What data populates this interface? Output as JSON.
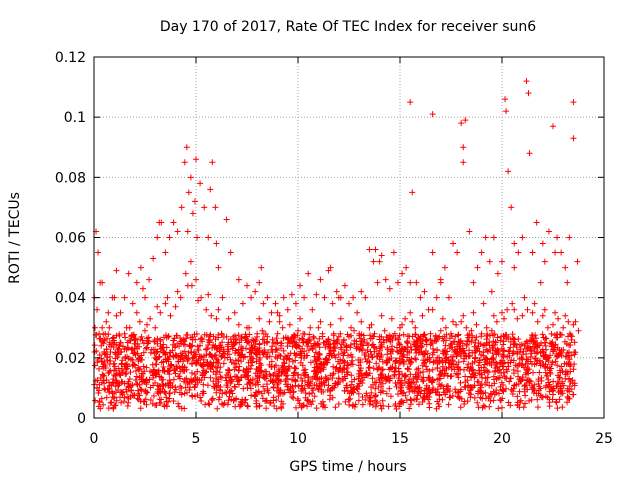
{
  "chart_data": {
    "type": "scatter",
    "title": "Day 170 of 2017, Rate Of TEC Index for receiver sun6",
    "xlabel": "GPS time / hours",
    "ylabel": "ROTI / TECUs",
    "xlim": [
      0,
      25
    ],
    "ylim": [
      0,
      0.12
    ],
    "x_ticks": [
      0,
      5,
      10,
      15,
      20,
      25
    ],
    "x_tick_labels": [
      "0",
      "5",
      "10",
      "15",
      "20",
      "25"
    ],
    "y_ticks": [
      0,
      0.02,
      0.04,
      0.06,
      0.08,
      0.1,
      0.12
    ],
    "y_tick_labels": [
      "0",
      "0.02",
      "0.04",
      "0.06",
      "0.08",
      "0.1",
      "0.12"
    ],
    "grid": true,
    "marker": "+",
    "color": "#ff0000",
    "series": [
      {
        "x": [
          0.02,
          0.1,
          0.2,
          0.3,
          0.4,
          0.55,
          0.7,
          0.9,
          1.1,
          1.3,
          1.5,
          1.7,
          1.9,
          2.1,
          2.3,
          2.5,
          2.7,
          2.9,
          3.1,
          3.3,
          3.5,
          3.7,
          3.9,
          4.1,
          4.3,
          4.45,
          4.55,
          4.65,
          4.75,
          4.85,
          4.95,
          5.05,
          5.2,
          5.4,
          5.6,
          5.8,
          5.95,
          6.1,
          6.3,
          6.5,
          6.7,
          6.9,
          7.1,
          7.3,
          7.5,
          7.7,
          7.9,
          8.1,
          8.3,
          8.5,
          8.7,
          8.9,
          9.1,
          9.3,
          9.5,
          9.7,
          9.9,
          10.1,
          10.3,
          10.5,
          10.7,
          10.9,
          11.1,
          11.3,
          11.5,
          11.7,
          11.9,
          12.1,
          12.3,
          12.5,
          12.7,
          12.9,
          13.1,
          13.3,
          13.5,
          13.7,
          13.9,
          14.1,
          14.3,
          14.5,
          14.7,
          14.9,
          15.1,
          15.3,
          15.5,
          15.6,
          15.8,
          16.0,
          16.2,
          16.4,
          16.6,
          16.8,
          17.0,
          17.2,
          17.4,
          17.6,
          17.8,
          18.0,
          18.1,
          18.2,
          18.4,
          18.6,
          18.8,
          19.0,
          19.2,
          19.4,
          19.6,
          19.8,
          20.0,
          20.15,
          20.3,
          20.45,
          20.6,
          20.8,
          21.0,
          21.2,
          21.35,
          21.5,
          21.7,
          21.9,
          22.1,
          22.3,
          22.5,
          22.7,
          22.9,
          23.1,
          23.3,
          23.5,
          23.7,
          1.0,
          3.2,
          4.6,
          5.0,
          5.7,
          8.2,
          11.6,
          13.8,
          15.5,
          16.6,
          18.1,
          20.2,
          21.3,
          22.6,
          23.5,
          0.4,
          2.4,
          4.8,
          6.0,
          9.0,
          12.0,
          14.0,
          17.0,
          19.5,
          20.6,
          22.0,
          23.2
        ],
        "y": [
          0.04,
          0.062,
          0.055,
          0.045,
          0.03,
          0.028,
          0.035,
          0.04,
          0.049,
          0.035,
          0.04,
          0.048,
          0.038,
          0.045,
          0.05,
          0.04,
          0.046,
          0.053,
          0.06,
          0.065,
          0.055,
          0.06,
          0.065,
          0.062,
          0.07,
          0.085,
          0.09,
          0.075,
          0.08,
          0.068,
          0.072,
          0.06,
          0.078,
          0.07,
          0.06,
          0.085,
          0.07,
          0.05,
          0.04,
          0.066,
          0.055,
          0.035,
          0.046,
          0.038,
          0.044,
          0.04,
          0.042,
          0.045,
          0.038,
          0.04,
          0.035,
          0.038,
          0.032,
          0.04,
          0.036,
          0.041,
          0.038,
          0.044,
          0.04,
          0.048,
          0.036,
          0.041,
          0.046,
          0.04,
          0.049,
          0.038,
          0.042,
          0.04,
          0.044,
          0.038,
          0.04,
          0.035,
          0.042,
          0.04,
          0.056,
          0.052,
          0.045,
          0.054,
          0.046,
          0.043,
          0.055,
          0.045,
          0.048,
          0.05,
          0.105,
          0.075,
          0.045,
          0.04,
          0.042,
          0.036,
          0.055,
          0.04,
          0.045,
          0.05,
          0.04,
          0.058,
          0.055,
          0.098,
          0.085,
          0.099,
          0.062,
          0.045,
          0.05,
          0.055,
          0.06,
          0.052,
          0.06,
          0.048,
          0.052,
          0.106,
          0.082,
          0.07,
          0.058,
          0.055,
          0.06,
          0.112,
          0.088,
          0.055,
          0.065,
          0.045,
          0.052,
          0.062,
          0.097,
          0.06,
          0.055,
          0.05,
          0.06,
          0.105,
          0.052,
          0.04,
          0.065,
          0.062,
          0.086,
          0.076,
          0.05,
          0.05,
          0.056,
          0.045,
          0.101,
          0.09,
          0.102,
          0.108,
          0.055,
          0.093,
          0.045,
          0.043,
          0.044,
          0.058,
          0.035,
          0.04,
          0.052,
          0.046,
          0.042,
          0.05,
          0.058,
          0.045
        ]
      },
      {
        "x": [
          0.05,
          0.25,
          0.5,
          0.75,
          1.0,
          1.25,
          1.5,
          1.75,
          2.0,
          2.25,
          2.5,
          2.75,
          3.0,
          3.25,
          3.5,
          3.75,
          4.0,
          4.25,
          4.5,
          4.75,
          5.0,
          5.25,
          5.5,
          5.75,
          6.0,
          6.25,
          6.5,
          6.75,
          7.0,
          7.25,
          7.5,
          7.75,
          8.0,
          8.25,
          8.5,
          8.75,
          9.0,
          9.25,
          9.5,
          9.75,
          10.0,
          10.25,
          10.5,
          10.75,
          11.0,
          11.25,
          11.5,
          11.75,
          12.0,
          12.25,
          12.5,
          12.75,
          13.0,
          13.25,
          13.5,
          13.75,
          14.0,
          14.25,
          14.5,
          14.75,
          15.0,
          15.25,
          15.5,
          15.75,
          16.0,
          16.25,
          16.5,
          16.75,
          17.0,
          17.25,
          17.5,
          17.75,
          18.0,
          18.25,
          18.5,
          18.75,
          19.0,
          19.25,
          19.5,
          19.75,
          20.0,
          20.25,
          20.5,
          20.75,
          21.0,
          21.25,
          21.5,
          21.75,
          22.0,
          22.25,
          22.5,
          22.75,
          23.0,
          23.25,
          23.5,
          23.75,
          0.15,
          0.6,
          1.1,
          1.6,
          2.1,
          2.6,
          3.1,
          3.6,
          4.1,
          4.6,
          5.1,
          5.6,
          6.1,
          6.6,
          7.1,
          7.6,
          8.1,
          8.6,
          9.1,
          9.6,
          10.1,
          10.6,
          11.1,
          11.6,
          12.1,
          12.6,
          13.1,
          13.6,
          14.1,
          14.6,
          15.1,
          15.6,
          16.1,
          16.6,
          17.1,
          17.6,
          18.1,
          18.6,
          19.1,
          19.6,
          20.1,
          20.6,
          21.1,
          21.6,
          22.1,
          22.6,
          23.1,
          23.6
        ],
        "y": [
          0.03,
          0.028,
          0.022,
          0.03,
          0.025,
          0.024,
          0.028,
          0.03,
          0.026,
          0.032,
          0.029,
          0.033,
          0.03,
          0.035,
          0.038,
          0.034,
          0.037,
          0.04,
          0.048,
          0.052,
          0.046,
          0.04,
          0.036,
          0.034,
          0.033,
          0.028,
          0.027,
          0.025,
          0.026,
          0.027,
          0.03,
          0.026,
          0.028,
          0.029,
          0.027,
          0.026,
          0.028,
          0.03,
          0.026,
          0.027,
          0.029,
          0.028,
          0.026,
          0.027,
          0.03,
          0.025,
          0.026,
          0.028,
          0.027,
          0.026,
          0.027,
          0.029,
          0.028,
          0.026,
          0.03,
          0.028,
          0.027,
          0.029,
          0.026,
          0.028,
          0.03,
          0.033,
          0.035,
          0.03,
          0.027,
          0.026,
          0.028,
          0.027,
          0.029,
          0.03,
          0.028,
          0.031,
          0.032,
          0.03,
          0.029,
          0.031,
          0.028,
          0.03,
          0.029,
          0.032,
          0.035,
          0.036,
          0.038,
          0.033,
          0.034,
          0.036,
          0.035,
          0.032,
          0.034,
          0.03,
          0.031,
          0.033,
          0.03,
          0.032,
          0.031,
          0.029,
          0.036,
          0.032,
          0.034,
          0.03,
          0.035,
          0.031,
          0.037,
          0.04,
          0.042,
          0.044,
          0.039,
          0.041,
          0.036,
          0.033,
          0.031,
          0.03,
          0.033,
          0.032,
          0.034,
          0.031,
          0.033,
          0.03,
          0.032,
          0.031,
          0.033,
          0.03,
          0.032,
          0.031,
          0.034,
          0.033,
          0.031,
          0.032,
          0.034,
          0.036,
          0.033,
          0.032,
          0.034,
          0.035,
          0.038,
          0.034,
          0.033,
          0.036,
          0.04,
          0.038,
          0.036,
          0.035,
          0.034,
          0.032
        ]
      }
    ],
    "density_band": {
      "x_range": [
        0,
        23.6
      ],
      "typical_low": 0.008,
      "typical_high": 0.028,
      "minimum": 0.003
    }
  }
}
